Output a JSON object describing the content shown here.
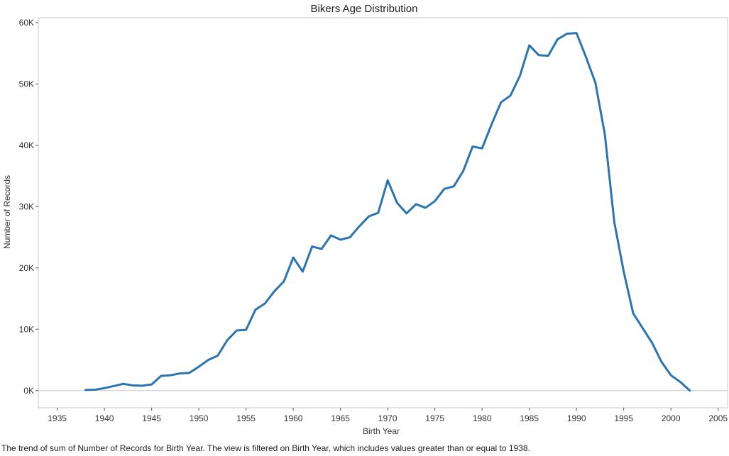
{
  "caption": "The trend of sum of Number of Records for Birth Year. The view is filtered on Birth Year, which includes values greater than or equal to 1938.",
  "chart_data": {
    "type": "line",
    "title": "Bikers Age Distribution",
    "xlabel": "Birth Year",
    "ylabel": "Number of Records",
    "xlim": [
      1933,
      2006
    ],
    "ylim": [
      -2800,
      60800
    ],
    "x_ticks": [
      1935,
      1940,
      1945,
      1950,
      1955,
      1960,
      1965,
      1970,
      1975,
      1980,
      1985,
      1990,
      1995,
      2000,
      2005
    ],
    "x_tick_labels": [
      "1935",
      "1940",
      "1945",
      "1950",
      "1955",
      "1960",
      "1965",
      "1970",
      "1975",
      "1980",
      "1985",
      "1990",
      "1995",
      "2000",
      "2005"
    ],
    "y_ticks": [
      0,
      10000,
      20000,
      30000,
      40000,
      50000,
      60000
    ],
    "y_tick_labels": [
      "0K",
      "10K",
      "20K",
      "30K",
      "40K",
      "50K",
      "60K"
    ],
    "grid": "horizontal zero line only",
    "line_color": "#2b74b1",
    "x": [
      1938,
      1939,
      1940,
      1941,
      1942,
      1943,
      1944,
      1945,
      1946,
      1947,
      1948,
      1949,
      1950,
      1951,
      1952,
      1953,
      1954,
      1955,
      1956,
      1957,
      1958,
      1959,
      1960,
      1961,
      1962,
      1963,
      1964,
      1965,
      1966,
      1967,
      1968,
      1969,
      1970,
      1971,
      1972,
      1973,
      1974,
      1975,
      1976,
      1977,
      1978,
      1979,
      1980,
      1981,
      1982,
      1983,
      1984,
      1985,
      1986,
      1987,
      1988,
      1989,
      1990,
      1991,
      1992,
      1993,
      1994,
      1995,
      1996,
      1997,
      1998,
      1999,
      2000,
      2001,
      2002
    ],
    "values": [
      100,
      150,
      400,
      750,
      1100,
      850,
      800,
      1000,
      2400,
      2500,
      2800,
      2900,
      3900,
      5000,
      5700,
      8200,
      9800,
      9900,
      13200,
      14200,
      16200,
      17800,
      21700,
      19400,
      23500,
      23100,
      25300,
      24600,
      25000,
      26800,
      28400,
      29000,
      34300,
      30600,
      28900,
      30400,
      29800,
      30900,
      32900,
      33300,
      35800,
      39800,
      39500,
      43400,
      47000,
      48100,
      51300,
      56300,
      54700,
      54600,
      57300,
      58200,
      58300,
      54400,
      50200,
      41800,
      27500,
      19400,
      12600,
      10200,
      7800,
      4700,
      2500,
      1400,
      0
    ]
  }
}
